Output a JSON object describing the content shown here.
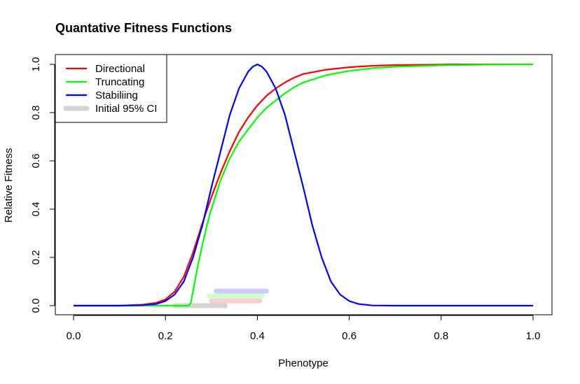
{
  "chart_data": {
    "type": "line",
    "title": "Quantative Fitness Functions",
    "xlabel": "Phenotype",
    "ylabel": "Relative Fitness",
    "xlim": [
      0,
      1
    ],
    "ylim": [
      0,
      1
    ],
    "xticks": [
      "0.0",
      "0.2",
      "0.4",
      "0.6",
      "0.8",
      "1.0"
    ],
    "yticks": [
      "0.0",
      "0.2",
      "0.4",
      "0.6",
      "0.8",
      "1.0"
    ],
    "grid": false,
    "legend_position": "top-left",
    "series": [
      {
        "name": "Directional",
        "color": "#ff0000",
        "x": [
          0.0,
          0.05,
          0.1,
          0.15,
          0.18,
          0.2,
          0.22,
          0.24,
          0.26,
          0.28,
          0.3,
          0.32,
          0.34,
          0.36,
          0.38,
          0.4,
          0.42,
          0.44,
          0.46,
          0.48,
          0.5,
          0.55,
          0.6,
          0.65,
          0.7,
          0.8,
          0.9,
          1.0
        ],
        "y": [
          0.0,
          0.0,
          0.0,
          0.004,
          0.012,
          0.026,
          0.058,
          0.12,
          0.22,
          0.34,
          0.45,
          0.55,
          0.64,
          0.72,
          0.78,
          0.83,
          0.87,
          0.9,
          0.925,
          0.945,
          0.96,
          0.978,
          0.988,
          0.994,
          0.997,
          0.999,
          1.0,
          1.0
        ]
      },
      {
        "name": "Truncating",
        "color": "#00ff00",
        "x": [
          0.0,
          0.1,
          0.2,
          0.25,
          0.255,
          0.26,
          0.27,
          0.28,
          0.29,
          0.3,
          0.32,
          0.34,
          0.36,
          0.38,
          0.4,
          0.42,
          0.44,
          0.46,
          0.48,
          0.5,
          0.55,
          0.6,
          0.65,
          0.7,
          0.8,
          0.9,
          1.0
        ],
        "y": [
          0.0,
          0.0,
          0.0,
          0.0,
          0.01,
          0.06,
          0.16,
          0.25,
          0.33,
          0.4,
          0.52,
          0.61,
          0.68,
          0.73,
          0.78,
          0.82,
          0.85,
          0.88,
          0.905,
          0.925,
          0.955,
          0.973,
          0.984,
          0.99,
          0.996,
          0.999,
          1.0
        ]
      },
      {
        "name": "Stabiliing",
        "color": "#0000ff",
        "x": [
          0.0,
          0.1,
          0.15,
          0.18,
          0.2,
          0.22,
          0.24,
          0.26,
          0.28,
          0.3,
          0.32,
          0.34,
          0.36,
          0.38,
          0.39,
          0.4,
          0.41,
          0.42,
          0.44,
          0.46,
          0.48,
          0.5,
          0.52,
          0.54,
          0.56,
          0.58,
          0.6,
          0.62,
          0.65,
          0.7,
          0.8,
          1.0
        ],
        "y": [
          0.0,
          0.0,
          0.002,
          0.007,
          0.019,
          0.046,
          0.1,
          0.2,
          0.33,
          0.49,
          0.64,
          0.79,
          0.9,
          0.97,
          0.99,
          1.0,
          0.99,
          0.97,
          0.9,
          0.79,
          0.64,
          0.49,
          0.33,
          0.2,
          0.1,
          0.046,
          0.019,
          0.007,
          0.001,
          0.0,
          0.0,
          0.0
        ]
      }
    ],
    "ci_bars": [
      {
        "name": "Initial 95% CI",
        "color": "#d3d3d3",
        "x": [
          0.22,
          0.33
        ],
        "y": 0.0
      },
      {
        "name": "Directional CI",
        "color": "#ffcccc",
        "x": [
          0.3,
          0.405
        ],
        "y": 0.02
      },
      {
        "name": "Truncating CI",
        "color": "#ccffcc",
        "x": [
          0.295,
          0.41
        ],
        "y": 0.04
      },
      {
        "name": "Stabiliing CI",
        "color": "#ccccff",
        "x": [
          0.31,
          0.42
        ],
        "y": 0.06
      }
    ],
    "legend": [
      {
        "label": "Directional",
        "color": "#ff0000",
        "style": "line"
      },
      {
        "label": "Truncating",
        "color": "#00ff00",
        "style": "line"
      },
      {
        "label": "Stabiliing",
        "color": "#0000ff",
        "style": "line"
      },
      {
        "label": "Initial 95% CI",
        "color": "#d3d3d3",
        "style": "thick"
      }
    ]
  }
}
